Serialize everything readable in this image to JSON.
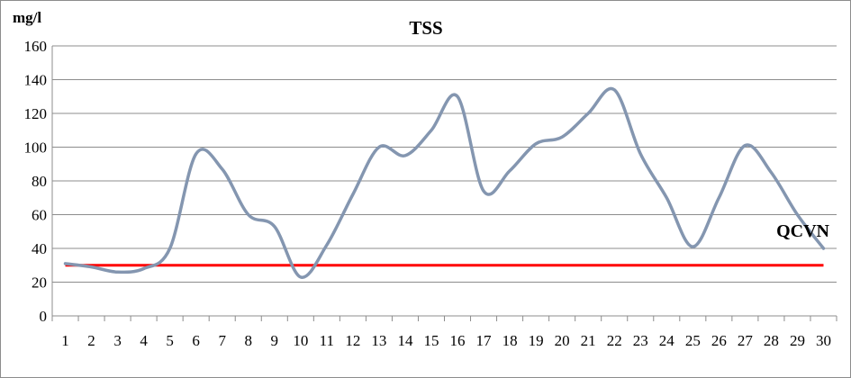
{
  "chart_data": {
    "type": "line",
    "title": "TSS",
    "ylabel": "mg/l",
    "xlabel": "",
    "ylim": [
      0,
      160
    ],
    "yticks": [
      0,
      20,
      40,
      60,
      80,
      100,
      120,
      140,
      160
    ],
    "grid": true,
    "categories": [
      "1",
      "2",
      "3",
      "4",
      "5",
      "6",
      "7",
      "8",
      "9",
      "10",
      "11",
      "12",
      "13",
      "14",
      "15",
      "16",
      "17",
      "18",
      "19",
      "20",
      "21",
      "22",
      "23",
      "24",
      "25",
      "26",
      "27",
      "28",
      "29",
      "30"
    ],
    "series": [
      {
        "color": "#8496b0",
        "values": [
          31,
          29,
          26,
          28,
          40,
          96,
          87,
          60,
          53,
          23,
          42,
          72,
          100,
          95,
          110,
          130,
          74,
          86,
          102,
          106,
          120,
          134,
          96,
          70,
          41,
          70,
          101,
          85,
          60,
          40
        ]
      }
    ],
    "reference_lines": [
      {
        "name": "QCVN",
        "value": 30,
        "color": "#ff0000"
      }
    ]
  }
}
